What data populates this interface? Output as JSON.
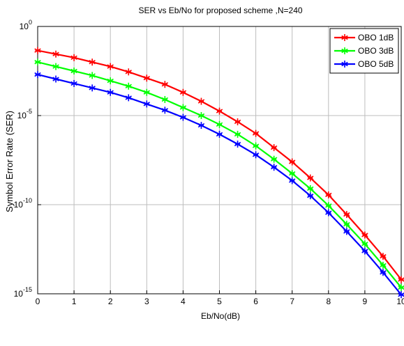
{
  "chart_data": {
    "type": "line",
    "title": "SER vs Eb/No for proposed scheme ,N=240",
    "xlabel": "Eb/No(dB)",
    "ylabel": "Symbol Error Rate (SER)",
    "yscale": "log",
    "xlim": [
      0,
      10
    ],
    "ylim_exp": [
      -15,
      0
    ],
    "grid": true,
    "legend_position": "top-right",
    "x_ticks": [
      "0",
      "1",
      "2",
      "3",
      "4",
      "5",
      "6",
      "7",
      "8",
      "9",
      "10"
    ],
    "y_ticks": [
      {
        "base": "10",
        "exp": "0"
      },
      {
        "base": "10",
        "exp": "-5"
      },
      {
        "base": "10",
        "exp": "-10"
      },
      {
        "base": "10",
        "exp": "-15"
      }
    ],
    "x": [
      0,
      0.5,
      1,
      1.5,
      2,
      2.5,
      3,
      3.5,
      4,
      4.5,
      5,
      5.5,
      6,
      6.5,
      7,
      7.5,
      8,
      8.5,
      9,
      9.5,
      10
    ],
    "series": [
      {
        "name": "OBO 1dB",
        "color": "#ff0000",
        "log10_values": [
          -1.35,
          -1.55,
          -1.75,
          -2.0,
          -2.25,
          -2.55,
          -2.9,
          -3.25,
          -3.7,
          -4.2,
          -4.75,
          -5.35,
          -6.0,
          -6.8,
          -7.6,
          -8.5,
          -9.45,
          -10.55,
          -11.7,
          -12.9,
          -14.2
        ]
      },
      {
        "name": "OBO 3dB",
        "color": "#00ff00",
        "log10_values": [
          -2.0,
          -2.25,
          -2.5,
          -2.75,
          -3.05,
          -3.35,
          -3.7,
          -4.1,
          -4.55,
          -5.0,
          -5.5,
          -6.05,
          -6.7,
          -7.45,
          -8.25,
          -9.1,
          -10.05,
          -11.1,
          -12.2,
          -13.4,
          -14.65
        ]
      },
      {
        "name": "OBO 5dB",
        "color": "#0000ff",
        "log10_values": [
          -2.7,
          -2.95,
          -3.2,
          -3.45,
          -3.7,
          -4.0,
          -4.35,
          -4.7,
          -5.1,
          -5.55,
          -6.05,
          -6.6,
          -7.2,
          -7.9,
          -8.65,
          -9.5,
          -10.45,
          -11.5,
          -12.6,
          -13.8,
          -15.05
        ]
      }
    ]
  }
}
